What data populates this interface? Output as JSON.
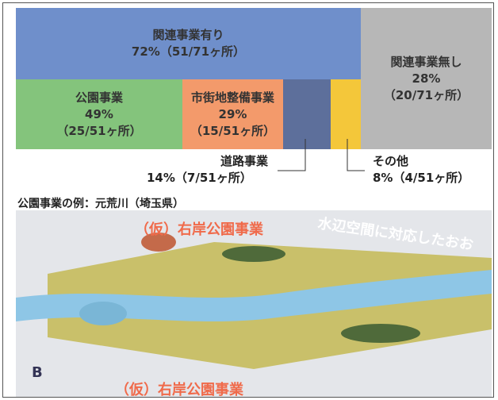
{
  "chart": {
    "related_yes": {
      "name": "関連事業有り",
      "detail": "72%（51/71ヶ所）"
    },
    "related_no": {
      "name": "関連事業無し",
      "percent": "28%",
      "detail": "（20/71ヶ所）"
    },
    "park": {
      "name": "公園事業",
      "percent": "49%",
      "detail": "（25/51ヶ所）"
    },
    "urban": {
      "name": "市街地整備事業",
      "percent": "29%",
      "detail": "（15/51ヶ所）"
    },
    "road": {
      "name": "道路事業",
      "detail": "14%（7/51ヶ所）"
    },
    "other": {
      "name": "その他",
      "detail": "8%（4/51ヶ所）"
    }
  },
  "example": {
    "caption": "公園事業の例：元荒川（埼玉県）",
    "map_texts": [
      "（仮）右岸公園事業",
      "水辺空間に対応したおお",
      "（仮）右岸公園事業",
      "B"
    ]
  }
}
